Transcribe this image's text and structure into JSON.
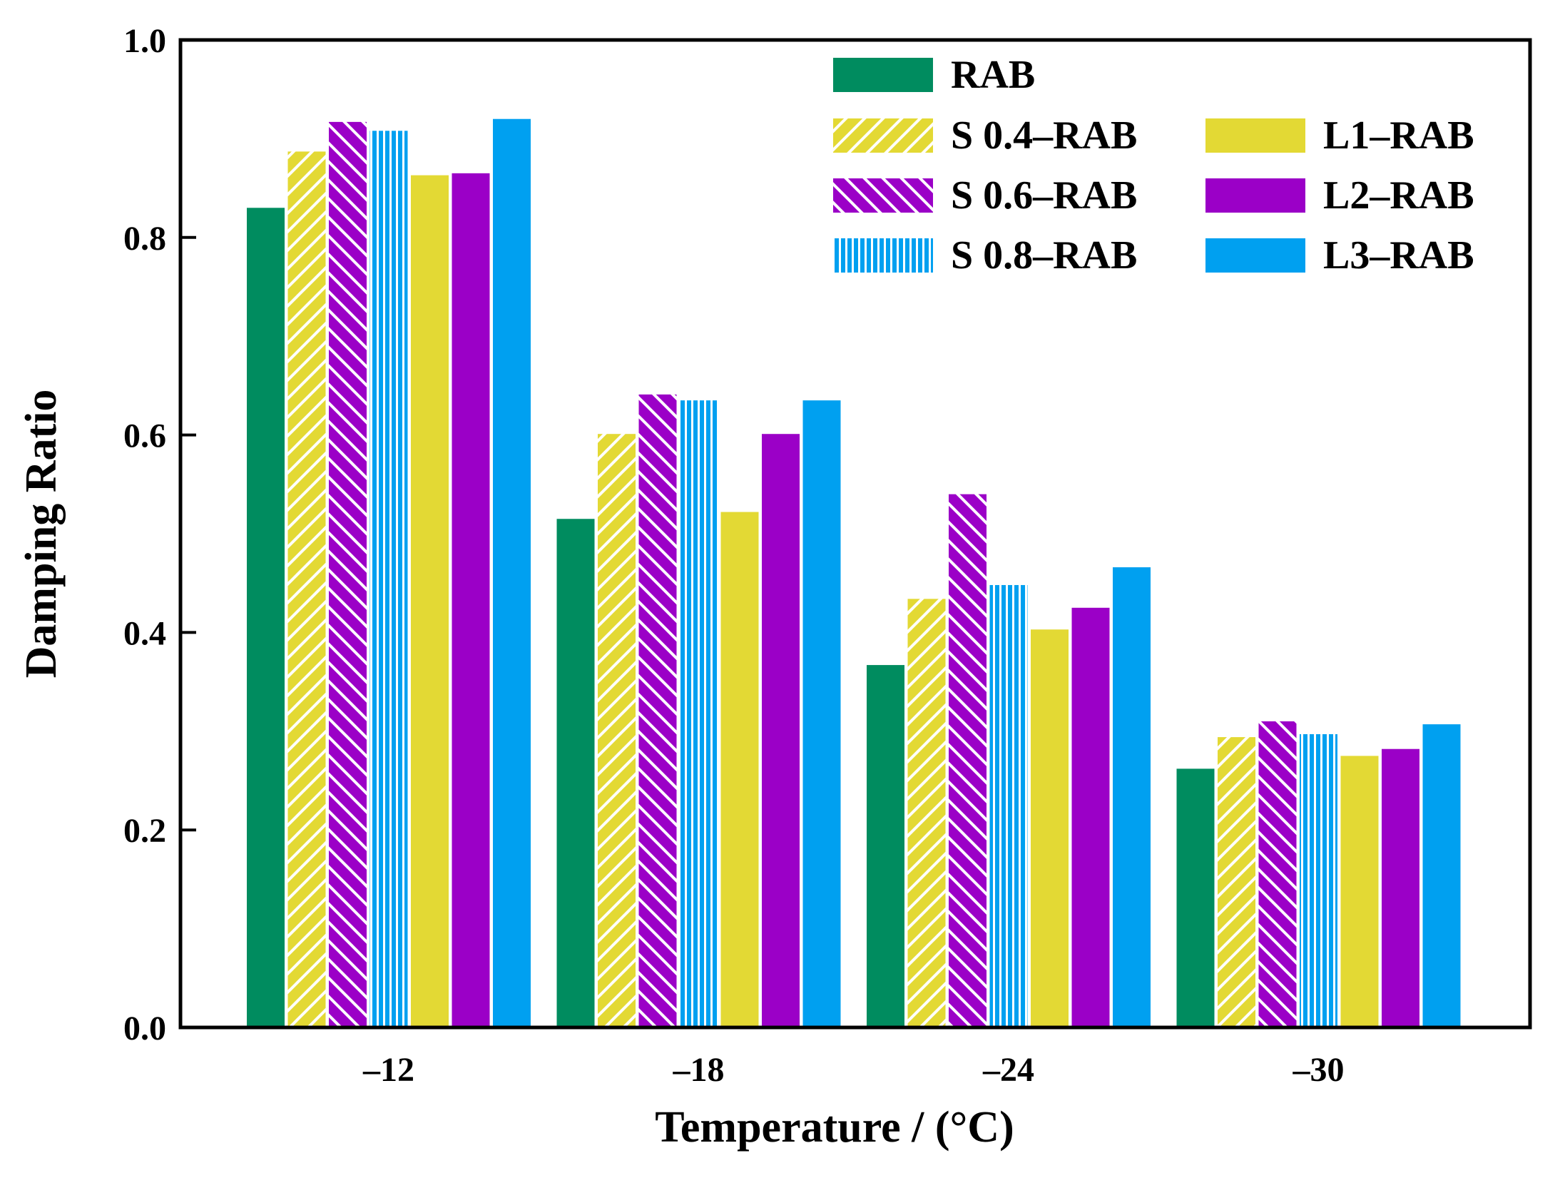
{
  "chart_data": {
    "type": "bar",
    "title": "",
    "xlabel": "Temperature / (°C)",
    "ylabel": "Damping Ratio",
    "ylim": [
      0,
      1.0
    ],
    "yticks": [
      "0.0",
      "0.2",
      "0.4",
      "0.6",
      "0.8",
      "1.0"
    ],
    "grid": false,
    "legend_position": "top-right",
    "categories": [
      "–12",
      "–18",
      "–24",
      "–30"
    ],
    "series": [
      {
        "name": "RAB",
        "color": "#008C5F",
        "pattern": "solid",
        "values": [
          0.83,
          0.515,
          0.367,
          0.262
        ]
      },
      {
        "name": "S 0.4–RAB",
        "color": "#E3D934",
        "pattern": "diagonal-up",
        "values": [
          0.887,
          0.601,
          0.434,
          0.294
        ]
      },
      {
        "name": "S 0.6–RAB",
        "color": "#9B00C7",
        "pattern": "diagonal-down",
        "values": [
          0.917,
          0.641,
          0.54,
          0.31
        ]
      },
      {
        "name": "S 0.8–RAB",
        "color": "#00A0F0",
        "pattern": "vertical",
        "values": [
          0.908,
          0.635,
          0.448,
          0.297
        ]
      },
      {
        "name": "L1–RAB",
        "color": "#E3D934",
        "pattern": "solid",
        "values": [
          0.863,
          0.522,
          0.403,
          0.275
        ]
      },
      {
        "name": "L2–RAB",
        "color": "#9B00C7",
        "pattern": "solid",
        "values": [
          0.865,
          0.601,
          0.425,
          0.282
        ]
      },
      {
        "name": "L3–RAB",
        "color": "#00A0F0",
        "pattern": "solid",
        "values": [
          0.92,
          0.635,
          0.466,
          0.307
        ]
      }
    ]
  }
}
